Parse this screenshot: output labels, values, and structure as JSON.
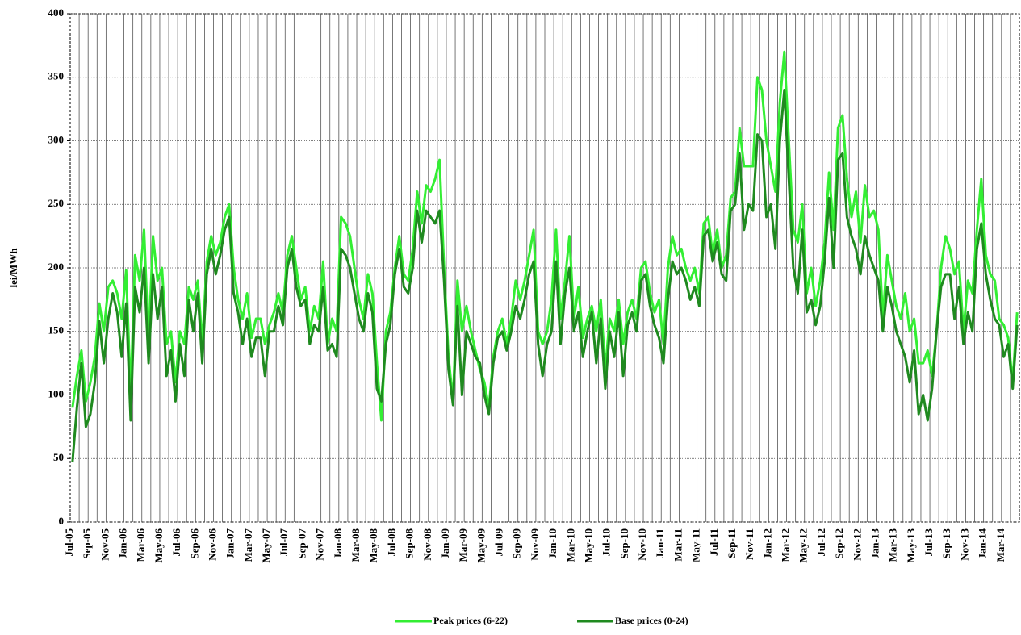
{
  "chart_data": {
    "type": "line",
    "y_label": "lei/MWh",
    "categories": [
      "Jul-05",
      null,
      null,
      null,
      "Sep-05",
      null,
      null,
      null,
      "Nov-05",
      null,
      null,
      null,
      "Jan-06",
      null,
      null,
      null,
      "Mar-06",
      null,
      null,
      null,
      "May-06",
      null,
      null,
      null,
      "Jul-06",
      null,
      null,
      null,
      "Sep-06",
      null,
      null,
      null,
      "Nov-06",
      null,
      null,
      null,
      "Jan-07",
      null,
      null,
      null,
      "Mar-07",
      null,
      null,
      null,
      "May-07",
      null,
      null,
      null,
      "Jul-07",
      null,
      null,
      null,
      "Sep-07",
      null,
      null,
      null,
      "Nov-07",
      null,
      null,
      null,
      "Jan-08",
      null,
      null,
      null,
      "Mar-08",
      null,
      null,
      null,
      "May-08",
      null,
      null,
      null,
      "Jul-08",
      null,
      null,
      null,
      "Sep-08",
      null,
      null,
      null,
      "Nov-08",
      null,
      null,
      null,
      "Jan-09",
      null,
      null,
      null,
      "Mar-09",
      null,
      null,
      null,
      "May-09",
      null,
      null,
      null,
      "Jul-09",
      null,
      null,
      null,
      "Sep-09",
      null,
      null,
      null,
      "Nov-09",
      null,
      null,
      null,
      "Jan-10",
      null,
      null,
      null,
      "Mar-10",
      null,
      null,
      null,
      "May-10",
      null,
      null,
      null,
      "Jul-10",
      null,
      null,
      null,
      "Sep-10",
      null,
      null,
      null,
      "Nov-10",
      null,
      null,
      null,
      "Jan-11",
      null,
      null,
      null,
      "Mar-11",
      null,
      null,
      null,
      "May-11",
      null,
      null,
      null,
      "Jul-11",
      null,
      null,
      null,
      "Sep-11",
      null,
      null,
      null,
      "Nov-11",
      null,
      null,
      null,
      "Jan-12",
      null,
      null,
      null,
      "Mar-12",
      null,
      null,
      null,
      "May-12",
      null,
      null,
      null,
      "Jul-12",
      null,
      null,
      null,
      "Sep-12",
      null,
      null,
      null,
      "Nov-12",
      null,
      null,
      null,
      "Jan-13",
      null,
      null,
      null,
      "Mar-13",
      null,
      null,
      null,
      "May-13",
      null,
      null,
      null,
      "Jul-13",
      null,
      null,
      null,
      "Sep-13",
      null,
      null,
      null,
      "Nov-13",
      null,
      null,
      null,
      "Jan-14",
      null,
      null,
      null,
      "Mar-14",
      null,
      null,
      null
    ],
    "series": [
      {
        "name": "Peak prices (6-22)",
        "color": "#33ee33",
        "values": [
          90,
          115,
          135,
          95,
          110,
          130,
          172,
          150,
          185,
          190,
          180,
          160,
          198,
          100,
          210,
          190,
          230,
          140,
          225,
          190,
          200,
          140,
          150,
          110,
          150,
          140,
          185,
          175,
          190,
          140,
          205,
          225,
          210,
          220,
          240,
          250,
          200,
          175,
          160,
          180,
          145,
          160,
          160,
          140,
          155,
          165,
          180,
          165,
          210,
          225,
          200,
          175,
          185,
          150,
          170,
          160,
          205,
          140,
          160,
          150,
          240,
          235,
          225,
          200,
          175,
          160,
          195,
          180,
          125,
          80,
          150,
          165,
          200,
          225,
          195,
          190,
          215,
          260,
          235,
          265,
          260,
          270,
          285,
          200,
          130,
          95,
          190,
          150,
          170,
          150,
          135,
          120,
          110,
          90,
          130,
          150,
          160,
          140,
          160,
          190,
          175,
          190,
          210,
          230,
          150,
          140,
          150,
          175,
          230,
          160,
          190,
          225,
          160,
          185,
          145,
          160,
          170,
          150,
          175,
          120,
          160,
          150,
          175,
          140,
          165,
          175,
          160,
          200,
          205,
          180,
          165,
          175,
          140,
          200,
          225,
          210,
          215,
          200,
          190,
          200,
          180,
          235,
          240,
          210,
          230,
          200,
          210,
          255,
          260,
          310,
          280,
          280,
          280,
          350,
          340,
          300,
          280,
          260,
          330,
          370,
          300,
          230,
          220,
          250,
          180,
          200,
          170,
          190,
          220,
          275,
          230,
          310,
          320,
          270,
          240,
          260,
          220,
          265,
          240,
          245,
          230,
          160,
          210,
          190,
          170,
          160,
          180,
          150,
          160,
          125,
          125,
          135,
          115,
          150,
          200,
          225,
          215,
          195,
          205,
          150,
          190,
          180,
          230,
          270,
          210,
          195,
          190,
          160,
          155,
          145,
          110,
          165
        ]
      },
      {
        "name": "Base prices (0-24)",
        "color": "#1f8a1f",
        "values": [
          47,
          90,
          125,
          75,
          85,
          110,
          158,
          125,
          160,
          180,
          165,
          130,
          172,
          80,
          185,
          165,
          200,
          125,
          195,
          160,
          185,
          115,
          135,
          95,
          140,
          115,
          175,
          150,
          180,
          125,
          195,
          215,
          195,
          210,
          230,
          240,
          180,
          165,
          140,
          160,
          130,
          145,
          145,
          115,
          150,
          150,
          170,
          155,
          200,
          215,
          185,
          170,
          175,
          140,
          155,
          150,
          185,
          135,
          140,
          130,
          215,
          210,
          200,
          180,
          160,
          150,
          180,
          165,
          105,
          95,
          140,
          155,
          195,
          215,
          185,
          180,
          200,
          245,
          220,
          245,
          240,
          235,
          245,
          190,
          120,
          92,
          170,
          100,
          150,
          140,
          130,
          125,
          100,
          85,
          125,
          145,
          150,
          135,
          150,
          170,
          160,
          175,
          195,
          205,
          140,
          115,
          140,
          150,
          205,
          140,
          180,
          200,
          150,
          165,
          130,
          150,
          165,
          125,
          160,
          105,
          150,
          130,
          165,
          115,
          155,
          165,
          150,
          190,
          195,
          170,
          155,
          145,
          125,
          175,
          205,
          195,
          200,
          190,
          175,
          185,
          170,
          225,
          230,
          205,
          220,
          195,
          190,
          245,
          250,
          290,
          230,
          250,
          245,
          305,
          300,
          240,
          250,
          215,
          300,
          340,
          270,
          200,
          180,
          230,
          165,
          175,
          155,
          170,
          205,
          255,
          200,
          285,
          290,
          240,
          225,
          215,
          195,
          225,
          210,
          200,
          190,
          150,
          185,
          170,
          150,
          140,
          130,
          110,
          135,
          85,
          100,
          80,
          105,
          150,
          185,
          195,
          195,
          160,
          185,
          140,
          165,
          150,
          215,
          235,
          195,
          175,
          160,
          155,
          130,
          140,
          105,
          155
        ]
      }
    ],
    "ylim": [
      0,
      400
    ],
    "yticks": [
      0,
      50,
      100,
      150,
      200,
      250,
      300,
      350,
      400
    ],
    "grid": true,
    "legend": "bottom"
  }
}
